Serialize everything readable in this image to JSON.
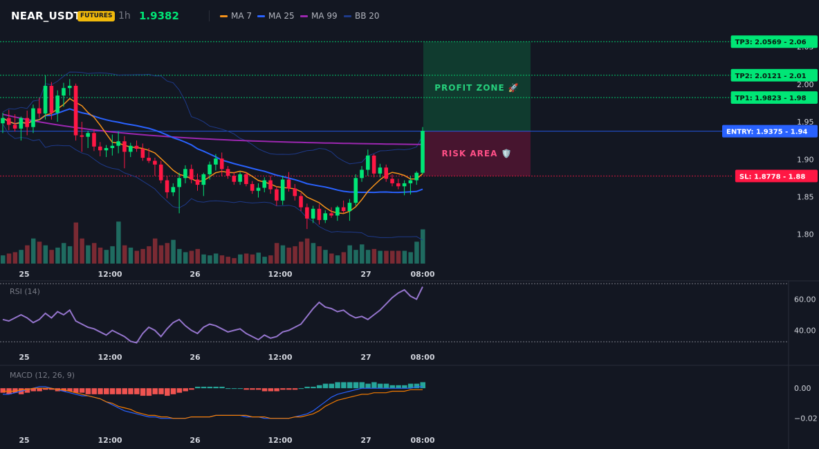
{
  "header": {
    "symbol": "NEAR_USDT",
    "badge": "FUTURES",
    "timeframe": "1h",
    "last_price": "1.9382",
    "legend": [
      {
        "label": "MA 7",
        "color": "#f7931a"
      },
      {
        "label": "MA 25",
        "color": "#2962ff"
      },
      {
        "label": "MA 99",
        "color": "#9c27b0"
      },
      {
        "label": "BB 20",
        "color": "#1e3a8a"
      }
    ]
  },
  "colors": {
    "up": "#26a69a",
    "down": "#ef5350",
    "up_bright": "#00e676",
    "down_bright": "#ff1744",
    "badge": "#f0b90b",
    "price": "#00e676",
    "entry": "#2962ff",
    "sl": "#ff1744",
    "tp": "#00e676",
    "rsi": "#9575cd",
    "macd_line": "#2962ff",
    "macd_signal": "#f57c00"
  },
  "chart_data": {
    "type": "candlestick",
    "symbol": "NEAR_USDT",
    "interval": "1h",
    "time_labels": [
      "25",
      "12:00",
      "26",
      "12:00",
      "27",
      "08:00"
    ],
    "price_axis_ticks": [
      1.8,
      1.85,
      1.9,
      1.95,
      2.0,
      2.05
    ],
    "price_axis_tick_labels": [
      "1.80",
      "1.85",
      "1.90",
      "1.95",
      "2.00",
      "2.05"
    ],
    "ylim": [
      1.76,
      2.07
    ],
    "candles": [
      {
        "o": 1.948,
        "h": 1.962,
        "l": 1.935,
        "c": 1.955
      },
      {
        "o": 1.955,
        "h": 1.966,
        "l": 1.939,
        "c": 1.946
      },
      {
        "o": 1.946,
        "h": 1.96,
        "l": 1.937,
        "c": 1.941
      },
      {
        "o": 1.941,
        "h": 1.957,
        "l": 1.925,
        "c": 1.955
      },
      {
        "o": 1.955,
        "h": 1.965,
        "l": 1.932,
        "c": 1.943
      },
      {
        "o": 1.943,
        "h": 1.973,
        "l": 1.935,
        "c": 1.968
      },
      {
        "o": 1.968,
        "h": 1.982,
        "l": 1.955,
        "c": 1.961
      },
      {
        "o": 1.961,
        "h": 2.012,
        "l": 1.953,
        "c": 1.998
      },
      {
        "o": 1.998,
        "h": 2.003,
        "l": 1.953,
        "c": 1.962
      },
      {
        "o": 1.962,
        "h": 1.992,
        "l": 1.95,
        "c": 1.985
      },
      {
        "o": 1.985,
        "h": 2.002,
        "l": 1.97,
        "c": 1.995
      },
      {
        "o": 1.995,
        "h": 2.007,
        "l": 1.985,
        "c": 1.998
      },
      {
        "o": 1.998,
        "h": 2.001,
        "l": 1.925,
        "c": 1.932
      },
      {
        "o": 1.932,
        "h": 1.95,
        "l": 1.91,
        "c": 1.93
      },
      {
        "o": 1.93,
        "h": 1.938,
        "l": 1.915,
        "c": 1.935
      },
      {
        "o": 1.935,
        "h": 1.94,
        "l": 1.911,
        "c": 1.917
      },
      {
        "o": 1.917,
        "h": 1.923,
        "l": 1.904,
        "c": 1.912
      },
      {
        "o": 1.912,
        "h": 1.919,
        "l": 1.903,
        "c": 1.915
      },
      {
        "o": 1.915,
        "h": 1.933,
        "l": 1.905,
        "c": 1.918
      },
      {
        "o": 1.918,
        "h": 1.937,
        "l": 1.908,
        "c": 1.924
      },
      {
        "o": 1.924,
        "h": 1.931,
        "l": 1.888,
        "c": 1.91
      },
      {
        "o": 1.91,
        "h": 1.922,
        "l": 1.903,
        "c": 1.918
      },
      {
        "o": 1.918,
        "h": 1.925,
        "l": 1.91,
        "c": 1.914
      },
      {
        "o": 1.914,
        "h": 1.921,
        "l": 1.898,
        "c": 1.902
      },
      {
        "o": 1.902,
        "h": 1.915,
        "l": 1.895,
        "c": 1.898
      },
      {
        "o": 1.898,
        "h": 1.902,
        "l": 1.878,
        "c": 1.893
      },
      {
        "o": 1.893,
        "h": 1.898,
        "l": 1.868,
        "c": 1.872
      },
      {
        "o": 1.872,
        "h": 1.878,
        "l": 1.848,
        "c": 1.856
      },
      {
        "o": 1.856,
        "h": 1.868,
        "l": 1.851,
        "c": 1.863
      },
      {
        "o": 1.863,
        "h": 1.882,
        "l": 1.828,
        "c": 1.875
      },
      {
        "o": 1.875,
        "h": 1.892,
        "l": 1.868,
        "c": 1.887
      },
      {
        "o": 1.887,
        "h": 1.893,
        "l": 1.868,
        "c": 1.873
      },
      {
        "o": 1.873,
        "h": 1.881,
        "l": 1.858,
        "c": 1.866
      },
      {
        "o": 1.866,
        "h": 1.882,
        "l": 1.851,
        "c": 1.88
      },
      {
        "o": 1.88,
        "h": 1.897,
        "l": 1.873,
        "c": 1.893
      },
      {
        "o": 1.893,
        "h": 1.907,
        "l": 1.885,
        "c": 1.901
      },
      {
        "o": 1.901,
        "h": 1.909,
        "l": 1.878,
        "c": 1.887
      },
      {
        "o": 1.887,
        "h": 1.891,
        "l": 1.874,
        "c": 1.878
      },
      {
        "o": 1.878,
        "h": 1.883,
        "l": 1.866,
        "c": 1.87
      },
      {
        "o": 1.87,
        "h": 1.883,
        "l": 1.866,
        "c": 1.88
      },
      {
        "o": 1.88,
        "h": 1.883,
        "l": 1.864,
        "c": 1.867
      },
      {
        "o": 1.867,
        "h": 1.871,
        "l": 1.854,
        "c": 1.858
      },
      {
        "o": 1.858,
        "h": 1.868,
        "l": 1.849,
        "c": 1.862
      },
      {
        "o": 1.862,
        "h": 1.876,
        "l": 1.856,
        "c": 1.872
      },
      {
        "o": 1.872,
        "h": 1.878,
        "l": 1.854,
        "c": 1.86
      },
      {
        "o": 1.86,
        "h": 1.864,
        "l": 1.838,
        "c": 1.845
      },
      {
        "o": 1.845,
        "h": 1.878,
        "l": 1.839,
        "c": 1.873
      },
      {
        "o": 1.873,
        "h": 1.883,
        "l": 1.857,
        "c": 1.861
      },
      {
        "o": 1.861,
        "h": 1.867,
        "l": 1.845,
        "c": 1.851
      },
      {
        "o": 1.851,
        "h": 1.855,
        "l": 1.831,
        "c": 1.836
      },
      {
        "o": 1.836,
        "h": 1.841,
        "l": 1.807,
        "c": 1.821
      },
      {
        "o": 1.821,
        "h": 1.838,
        "l": 1.815,
        "c": 1.834
      },
      {
        "o": 1.834,
        "h": 1.84,
        "l": 1.813,
        "c": 1.819
      },
      {
        "o": 1.819,
        "h": 1.832,
        "l": 1.815,
        "c": 1.828
      },
      {
        "o": 1.828,
        "h": 1.836,
        "l": 1.822,
        "c": 1.825
      },
      {
        "o": 1.825,
        "h": 1.838,
        "l": 1.818,
        "c": 1.836
      },
      {
        "o": 1.836,
        "h": 1.845,
        "l": 1.828,
        "c": 1.831
      },
      {
        "o": 1.831,
        "h": 1.847,
        "l": 1.818,
        "c": 1.842
      },
      {
        "o": 1.842,
        "h": 1.88,
        "l": 1.838,
        "c": 1.875
      },
      {
        "o": 1.875,
        "h": 1.891,
        "l": 1.87,
        "c": 1.886
      },
      {
        "o": 1.886,
        "h": 1.913,
        "l": 1.878,
        "c": 1.905
      },
      {
        "o": 1.905,
        "h": 1.907,
        "l": 1.876,
        "c": 1.881
      },
      {
        "o": 1.881,
        "h": 1.894,
        "l": 1.876,
        "c": 1.889
      },
      {
        "o": 1.889,
        "h": 1.893,
        "l": 1.87,
        "c": 1.874
      },
      {
        "o": 1.874,
        "h": 1.88,
        "l": 1.864,
        "c": 1.868
      },
      {
        "o": 1.868,
        "h": 1.874,
        "l": 1.86,
        "c": 1.864
      },
      {
        "o": 1.864,
        "h": 1.872,
        "l": 1.852,
        "c": 1.868
      },
      {
        "o": 1.868,
        "h": 1.878,
        "l": 1.853,
        "c": 1.872
      },
      {
        "o": 1.872,
        "h": 1.884,
        "l": 1.866,
        "c": 1.882
      },
      {
        "o": 1.882,
        "h": 1.943,
        "l": 1.88,
        "c": 1.938
      }
    ],
    "volume": [
      0.18,
      0.22,
      0.25,
      0.3,
      0.4,
      0.55,
      0.48,
      0.4,
      0.3,
      0.35,
      0.45,
      0.38,
      0.9,
      0.55,
      0.4,
      0.45,
      0.35,
      0.3,
      0.38,
      0.92,
      0.4,
      0.35,
      0.28,
      0.32,
      0.38,
      0.55,
      0.4,
      0.45,
      0.52,
      0.32,
      0.25,
      0.28,
      0.32,
      0.2,
      0.18,
      0.22,
      0.18,
      0.15,
      0.12,
      0.2,
      0.22,
      0.2,
      0.24,
      0.15,
      0.18,
      0.45,
      0.4,
      0.35,
      0.38,
      0.48,
      0.55,
      0.45,
      0.38,
      0.3,
      0.22,
      0.18,
      0.25,
      0.4,
      0.3,
      0.42,
      0.3,
      0.32,
      0.28,
      0.28,
      0.28,
      0.28,
      0.28,
      0.25,
      0.48,
      0.75
    ],
    "rsi": {
      "label": "RSI (14)",
      "ticks": [
        40.0,
        60.0
      ],
      "tick_labels": [
        "40.00",
        "60.00"
      ],
      "ylim": [
        30,
        70
      ],
      "values": [
        47,
        46,
        48,
        50,
        48,
        45,
        47,
        51,
        48,
        52,
        50,
        53,
        46,
        44,
        42,
        41,
        39,
        37,
        40,
        38,
        36,
        33,
        32,
        38,
        42,
        40,
        36,
        41,
        45,
        47,
        43,
        40,
        38,
        42,
        44,
        43,
        41,
        39,
        40,
        41,
        38,
        36,
        34,
        37,
        35,
        36,
        39,
        40,
        42,
        44,
        49,
        54,
        58,
        55,
        54,
        52,
        53,
        50,
        48,
        49,
        47,
        50,
        53,
        57,
        61,
        64,
        66,
        62,
        60,
        68
      ]
    },
    "macd": {
      "label": "MACD (12, 26, 9)",
      "ticks": [
        0.0,
        -0.02
      ],
      "tick_labels": [
        "0.00",
        "−0.02"
      ],
      "ylim": [
        -0.027,
        0.012
      ],
      "histogram": [
        -0.003,
        -0.004,
        -0.003,
        -0.004,
        -0.003,
        -0.002,
        -0.002,
        -0.001,
        -0.001,
        -0.002,
        -0.002,
        -0.002,
        -0.003,
        -0.003,
        -0.004,
        -0.004,
        -0.004,
        -0.004,
        -0.004,
        -0.004,
        -0.004,
        -0.004,
        -0.004,
        -0.005,
        -0.005,
        -0.004,
        -0.004,
        -0.005,
        -0.004,
        -0.003,
        -0.002,
        -0.001,
        0.001,
        0.001,
        0.001,
        0.001,
        0.001,
        0.0,
        0.0,
        0.0,
        -0.001,
        -0.001,
        -0.001,
        -0.002,
        -0.002,
        -0.002,
        -0.001,
        -0.001,
        -0.001,
        0.0,
        0.001,
        0.001,
        0.002,
        0.003,
        0.003,
        0.004,
        0.004,
        0.004,
        0.004,
        0.004,
        0.003,
        0.004,
        0.003,
        0.003,
        0.002,
        0.002,
        0.002,
        0.003,
        0.003,
        0.004
      ],
      "macd_line": [
        -0.004,
        -0.004,
        -0.003,
        -0.002,
        -0.001,
        0.0,
        0.001,
        0.001,
        0.0,
        -0.001,
        -0.002,
        -0.003,
        -0.004,
        -0.005,
        -0.005,
        -0.006,
        -0.007,
        -0.009,
        -0.011,
        -0.013,
        -0.015,
        -0.016,
        -0.017,
        -0.018,
        -0.019,
        -0.019,
        -0.02,
        -0.02,
        -0.02,
        -0.02,
        -0.02,
        -0.019,
        -0.019,
        -0.019,
        -0.019,
        -0.018,
        -0.018,
        -0.018,
        -0.018,
        -0.018,
        -0.019,
        -0.019,
        -0.019,
        -0.02,
        -0.02,
        -0.02,
        -0.02,
        -0.02,
        -0.019,
        -0.018,
        -0.017,
        -0.015,
        -0.012,
        -0.009,
        -0.006,
        -0.004,
        -0.003,
        -0.002,
        -0.001,
        0.0,
        0.0,
        0.0,
        0.0,
        0.0,
        0.0,
        0.0,
        0.0,
        0.0,
        0.001,
        0.001
      ],
      "signal_line": [
        -0.002,
        -0.002,
        -0.002,
        -0.001,
        -0.001,
        0.0,
        0.0,
        0.0,
        0.0,
        -0.001,
        -0.001,
        -0.002,
        -0.003,
        -0.004,
        -0.005,
        -0.006,
        -0.007,
        -0.009,
        -0.01,
        -0.012,
        -0.013,
        -0.014,
        -0.016,
        -0.017,
        -0.018,
        -0.018,
        -0.019,
        -0.019,
        -0.02,
        -0.02,
        -0.02,
        -0.019,
        -0.019,
        -0.019,
        -0.019,
        -0.018,
        -0.018,
        -0.018,
        -0.018,
        -0.018,
        -0.018,
        -0.019,
        -0.019,
        -0.019,
        -0.02,
        -0.02,
        -0.02,
        -0.02,
        -0.019,
        -0.019,
        -0.018,
        -0.017,
        -0.015,
        -0.012,
        -0.01,
        -0.008,
        -0.007,
        -0.006,
        -0.005,
        -0.004,
        -0.004,
        -0.003,
        -0.003,
        -0.003,
        -0.002,
        -0.002,
        -0.002,
        -0.001,
        -0.001,
        -0.001
      ]
    },
    "levels": [
      {
        "name": "tp3",
        "label": "TP3: 2.0569",
        "axis": "2.06",
        "value": 2.0569
      },
      {
        "name": "tp2",
        "label": "TP2: 2.0121",
        "axis": "2.01",
        "value": 2.0121
      },
      {
        "name": "tp1",
        "label": "TP1: 1.9823",
        "axis": "1.98",
        "value": 1.9823
      },
      {
        "name": "entry",
        "label": "ENTRY: 1.9375",
        "axis": "1.94",
        "value": 1.9375
      },
      {
        "name": "sl",
        "label": "SL: 1.8778",
        "axis": "1.88",
        "value": 1.8778
      }
    ],
    "zones": {
      "profit": "PROFIT ZONE 🚀",
      "risk": "RISK AREA 🛡️"
    }
  }
}
